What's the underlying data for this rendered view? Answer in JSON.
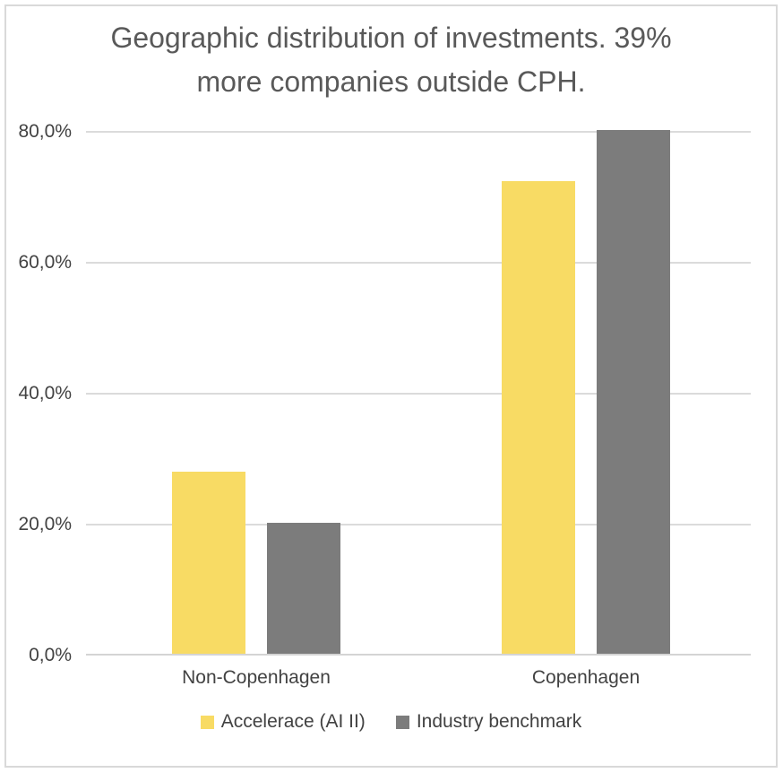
{
  "page": {
    "background": "#ffffff",
    "border_color": "#d9d9d9"
  },
  "chart_data": {
    "type": "bar",
    "title": "Geographic distribution of investments. 39% more companies outside CPH.",
    "title_lines": [
      "Geographic distribution of investments. 39%",
      "more companies outside CPH."
    ],
    "categories": [
      "Non-Copenhagen",
      "Copenhagen"
    ],
    "series": [
      {
        "name": "Accelerace (AI II)",
        "color": "#f8db64",
        "values": [
          27.8,
          72.2
        ]
      },
      {
        "name": "Industry benchmark",
        "color": "#7c7c7c",
        "values": [
          20.0,
          80.0
        ]
      }
    ],
    "y_axis": {
      "min": 0,
      "max": 80,
      "ticks": [
        {
          "value": 0,
          "label": "0,0%"
        },
        {
          "value": 20,
          "label": "20,0%"
        },
        {
          "value": 40,
          "label": "40,0%"
        },
        {
          "value": 60,
          "label": "60,0%"
        },
        {
          "value": 80,
          "label": "80,0%"
        }
      ]
    },
    "grid": true,
    "legend_position": "bottom",
    "colors": {
      "title_text": "#595959",
      "label_text": "#424242",
      "grid_line": "#dbdbdb",
      "axis_line": "#d4d4d4"
    }
  }
}
